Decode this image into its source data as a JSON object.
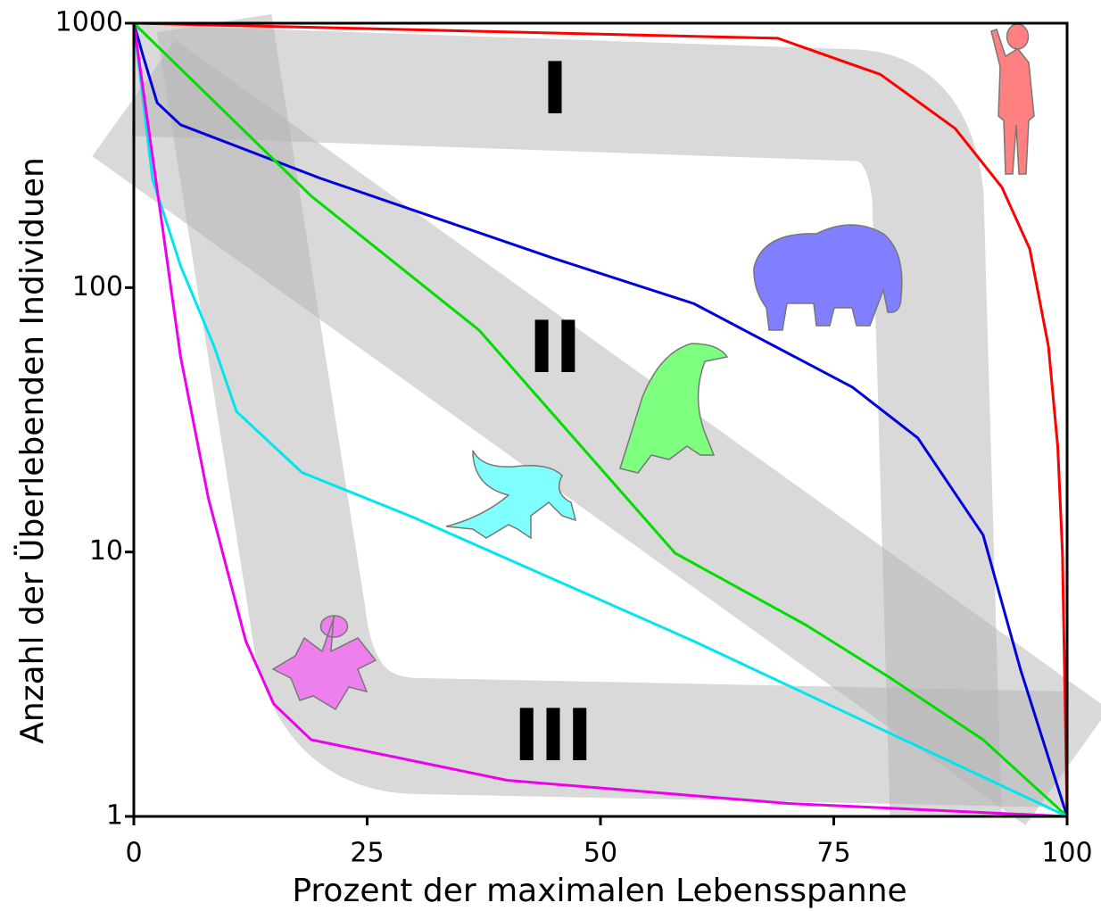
{
  "chart_data": {
    "type": "line",
    "xlabel": "Prozent der maximalen Lebensspanne",
    "ylabel": "Anzahl der Überlebenden Individuen",
    "annotations": [
      "I",
      "II",
      "III"
    ],
    "xlim": [
      0,
      100
    ],
    "xticks": [
      0,
      25,
      50,
      75,
      100
    ],
    "ylim": [
      1,
      1000
    ],
    "yticks": [
      1,
      10,
      100,
      1000
    ],
    "y_scale": "log",
    "series": [
      {
        "color": "#ff0000",
        "x": [
          0,
          69,
          80,
          88,
          93,
          96,
          98,
          99,
          99.5,
          100
        ],
        "values": [
          1000,
          877,
          640,
          400,
          240,
          140,
          60,
          25,
          10,
          1
        ]
      },
      {
        "color": "#0000dd",
        "x": [
          0,
          1,
          2.5,
          5,
          20,
          45,
          60,
          77,
          84,
          91,
          95,
          100
        ],
        "values": [
          1000,
          750,
          500,
          413,
          259,
          129,
          87,
          42,
          27,
          11.6,
          3.6,
          1
        ]
      },
      {
        "color": "#00dd00",
        "x": [
          0,
          19,
          37,
          58,
          72,
          81,
          91,
          100
        ],
        "values": [
          1000,
          222,
          69,
          9.9,
          5.3,
          3.35,
          1.95,
          1
        ]
      },
      {
        "color": "#00e5ee",
        "x": [
          0,
          2,
          5,
          8.6,
          11,
          18,
          30,
          60,
          100
        ],
        "values": [
          1000,
          258,
          121,
          60,
          34,
          20,
          13.5,
          4.6,
          1
        ]
      },
      {
        "color": "#ee00ee",
        "x": [
          0,
          3,
          5,
          8,
          12,
          15,
          19,
          40,
          70,
          100
        ],
        "values": [
          1000,
          176,
          55,
          15.9,
          4.6,
          2.66,
          1.95,
          1.37,
          1.12,
          1
        ]
      }
    ]
  }
}
